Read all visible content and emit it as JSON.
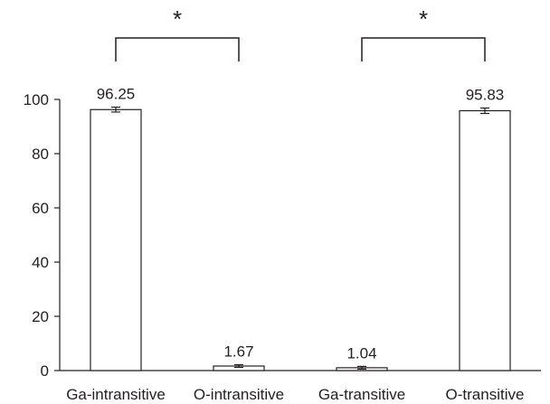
{
  "chart_data": {
    "type": "bar",
    "categories": [
      "Ga-intransitive",
      "O-intransitive",
      "Ga-transitive",
      "O-transitive"
    ],
    "values": [
      96.25,
      1.67,
      1.04,
      95.83
    ],
    "value_labels": [
      "96.25",
      "1.67",
      "1.04",
      "95.83"
    ],
    "error": [
      0.9,
      0.5,
      0.5,
      1.0
    ],
    "ylim": [
      0,
      100
    ],
    "yticks": [
      0,
      20,
      40,
      60,
      80,
      100
    ],
    "title": "",
    "xlabel": "",
    "ylabel": "",
    "grid": false,
    "significance": [
      {
        "from": 0,
        "to": 1,
        "label": "*"
      },
      {
        "from": 2,
        "to": 3,
        "label": "*"
      }
    ],
    "colors": {
      "bar_fill": "#ffffff",
      "stroke": "#231f20",
      "text": "#231f20"
    }
  }
}
